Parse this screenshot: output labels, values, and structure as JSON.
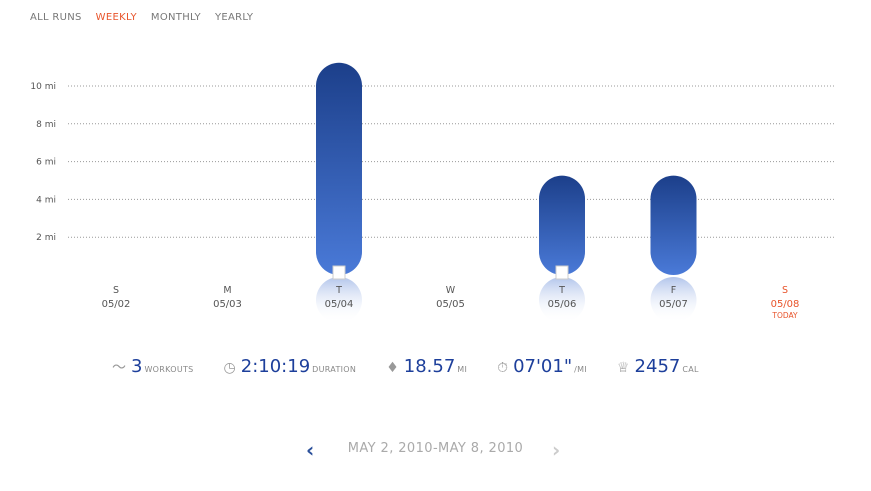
{
  "tabs": [
    {
      "label": "ALL RUNS",
      "active": false
    },
    {
      "label": "WEEKLY",
      "active": true
    },
    {
      "label": "MONTHLY",
      "active": false
    },
    {
      "label": "YEARLY",
      "active": false
    }
  ],
  "chart_data": {
    "type": "bar",
    "yticks": [
      {
        "value": 2,
        "label": "2 mi"
      },
      {
        "value": 4,
        "label": "4 mi"
      },
      {
        "value": 6,
        "label": "6 mi"
      },
      {
        "value": 8,
        "label": "8 mi"
      },
      {
        "value": 10,
        "label": "10 mi"
      }
    ],
    "ylim": [
      0,
      10
    ],
    "grid": true,
    "categories": [
      {
        "day": "S",
        "date": "05/02"
      },
      {
        "day": "M",
        "date": "05/03"
      },
      {
        "day": "T",
        "date": "05/04"
      },
      {
        "day": "W",
        "date": "05/05"
      },
      {
        "day": "T",
        "date": "05/06"
      },
      {
        "day": "F",
        "date": "05/07"
      },
      {
        "day": "S",
        "date": "05/08",
        "note": "TODAY"
      }
    ],
    "values": [
      0,
      0,
      10.17,
      0,
      4.2,
      4.2,
      0
    ],
    "has_note": [
      false,
      false,
      true,
      false,
      true,
      false,
      false
    ],
    "colors": {
      "bar_top": "#1c3f8a",
      "bar_bottom": "#4a7ad8",
      "today": "#e8542b",
      "grid": "#999999"
    }
  },
  "stats": [
    {
      "icon": "route-icon",
      "value": "3",
      "unit": "WORKOUTS"
    },
    {
      "icon": "clock-icon",
      "value": "2:10:19",
      "unit": "DURATION"
    },
    {
      "icon": "map-pin-icon",
      "value": "18.57",
      "unit": "MI"
    },
    {
      "icon": "stopwatch-icon",
      "value": "07'01\"",
      "unit": "/MI"
    },
    {
      "icon": "trophy-icon",
      "value": "2457",
      "unit": "CAL"
    }
  ],
  "range": "MAY 2, 2010-MAY 8, 2010"
}
